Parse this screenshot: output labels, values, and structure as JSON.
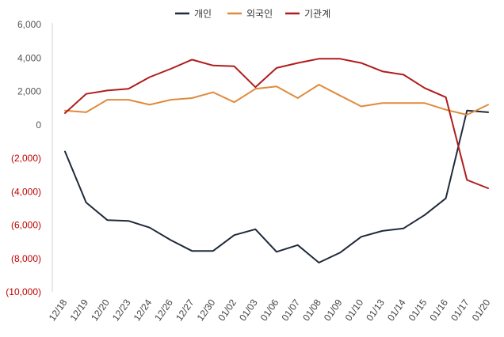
{
  "chart_data": {
    "type": "line",
    "title": "",
    "xlabel": "",
    "ylabel": "",
    "ylim": [
      -10000,
      6000
    ],
    "y_ticks": [
      {
        "value": 6000,
        "label": "6,000"
      },
      {
        "value": 4000,
        "label": "4,000"
      },
      {
        "value": 2000,
        "label": "2,000"
      },
      {
        "value": 0,
        "label": "0"
      },
      {
        "value": -2000,
        "label": "(2,000)"
      },
      {
        "value": -4000,
        "label": "(4,000)"
      },
      {
        "value": -6000,
        "label": "(6,000)"
      },
      {
        "value": -8000,
        "label": "(8,000)"
      },
      {
        "value": -10000,
        "label": "(10,000)"
      }
    ],
    "categories": [
      "12/18",
      "12/19",
      "12/20",
      "12/23",
      "12/24",
      "12/26",
      "12/27",
      "12/30",
      "01/02",
      "01/03",
      "01/06",
      "01/07",
      "01/08",
      "01/09",
      "01/10",
      "01/13",
      "01/14",
      "01/15",
      "01/16",
      "01/17",
      "01/20"
    ],
    "series": [
      {
        "name": "개인",
        "color": "#1f2a3a",
        "values": [
          -1600,
          -4650,
          -5700,
          -5750,
          -6150,
          -6900,
          -7550,
          -7550,
          -6600,
          -6250,
          -7600,
          -7200,
          -8250,
          -7650,
          -6700,
          -6350,
          -6200,
          -5400,
          -4400,
          850,
          750
        ]
      },
      {
        "name": "외국인",
        "color": "#e08a3c",
        "values": [
          850,
          750,
          1500,
          1500,
          1200,
          1500,
          1600,
          1950,
          1350,
          2150,
          2300,
          1600,
          2400,
          1750,
          1100,
          1300,
          1300,
          1300,
          900,
          600,
          1200
        ]
      },
      {
        "name": "기관계",
        "color": "#b01c1c",
        "values": [
          700,
          1850,
          2050,
          2150,
          2850,
          3350,
          3900,
          3550,
          3500,
          2250,
          3400,
          3700,
          3950,
          3950,
          3700,
          3200,
          3000,
          2200,
          1650,
          -3300,
          -3800
        ]
      }
    ],
    "grid": false,
    "legend_position": "top-center",
    "negative_label_color": "#c00000",
    "positive_label_color": "#555555"
  }
}
